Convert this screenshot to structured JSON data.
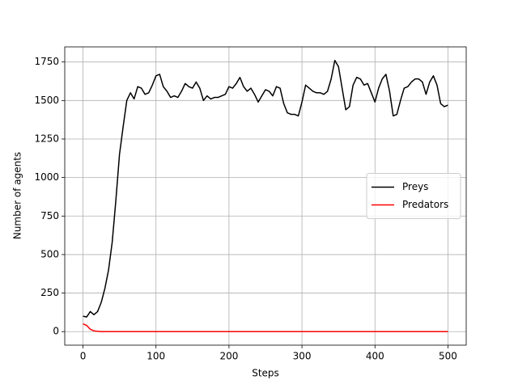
{
  "chart_data": {
    "type": "line",
    "xlabel": "Steps",
    "ylabel": "Number of agents",
    "x": [
      0,
      5,
      10,
      15,
      20,
      25,
      30,
      35,
      40,
      45,
      50,
      55,
      60,
      65,
      70,
      75,
      80,
      85,
      90,
      95,
      100,
      105,
      110,
      115,
      120,
      125,
      130,
      135,
      140,
      145,
      150,
      155,
      160,
      165,
      170,
      175,
      180,
      185,
      190,
      195,
      200,
      205,
      210,
      215,
      220,
      225,
      230,
      235,
      240,
      245,
      250,
      255,
      260,
      265,
      270,
      275,
      280,
      285,
      290,
      295,
      300,
      305,
      310,
      315,
      320,
      325,
      330,
      335,
      340,
      345,
      350,
      355,
      360,
      365,
      370,
      375,
      380,
      385,
      390,
      395,
      400,
      405,
      410,
      415,
      420,
      425,
      430,
      435,
      440,
      445,
      450,
      455,
      460,
      465,
      470,
      475,
      480,
      485,
      490,
      495,
      500
    ],
    "series": [
      {
        "name": "Preys",
        "color": "#000000",
        "values": [
          100,
          95,
          130,
          110,
          130,
          190,
          280,
          400,
          580,
          850,
          1150,
          1330,
          1500,
          1550,
          1510,
          1590,
          1580,
          1540,
          1550,
          1600,
          1660,
          1670,
          1590,
          1560,
          1520,
          1530,
          1520,
          1560,
          1610,
          1590,
          1580,
          1620,
          1580,
          1500,
          1530,
          1510,
          1520,
          1520,
          1530,
          1540,
          1590,
          1580,
          1610,
          1650,
          1590,
          1560,
          1580,
          1540,
          1490,
          1530,
          1570,
          1560,
          1530,
          1590,
          1580,
          1480,
          1420,
          1410,
          1410,
          1400,
          1490,
          1600,
          1580,
          1560,
          1550,
          1550,
          1540,
          1560,
          1640,
          1760,
          1720,
          1580,
          1440,
          1460,
          1600,
          1650,
          1640,
          1600,
          1610,
          1550,
          1490,
          1580,
          1640,
          1670,
          1560,
          1400,
          1410,
          1500,
          1580,
          1590,
          1620,
          1640,
          1640,
          1620,
          1540,
          1620,
          1660,
          1600,
          1480,
          1460,
          1470
        ]
      },
      {
        "name": "Predators",
        "color": "#ff0000",
        "values": [
          50,
          40,
          15,
          5,
          2,
          0,
          0,
          0,
          0,
          0,
          0,
          0,
          0,
          0,
          0,
          0,
          0,
          0,
          0,
          0,
          0,
          0,
          0,
          0,
          0,
          0,
          0,
          0,
          0,
          0,
          0,
          0,
          0,
          0,
          0,
          0,
          0,
          0,
          0,
          0,
          0,
          0,
          0,
          0,
          0,
          0,
          0,
          0,
          0,
          0,
          0,
          0,
          0,
          0,
          0,
          0,
          0,
          0,
          0,
          0,
          0,
          0,
          0,
          0,
          0,
          0,
          0,
          0,
          0,
          0,
          0,
          0,
          0,
          0,
          0,
          0,
          0,
          0,
          0,
          0,
          0,
          0,
          0,
          0,
          0,
          0,
          0,
          0,
          0,
          0,
          0,
          0,
          0,
          0,
          0,
          0,
          0,
          0,
          0,
          0,
          0
        ]
      }
    ],
    "xlim": [
      -25,
      525
    ],
    "xticks": [
      0,
      100,
      200,
      300,
      400,
      500
    ],
    "ylim": [
      -88,
      1848
    ],
    "yticks": [
      0,
      250,
      500,
      750,
      1000,
      1250,
      1500,
      1750
    ],
    "grid": true,
    "legend": "center right"
  }
}
